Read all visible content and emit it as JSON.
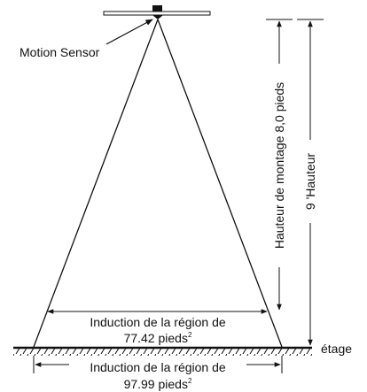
{
  "sensor_label": "Motion Sensor",
  "mount_height": "Hauteur de montage 8,0 pieds",
  "total_height": "9 'Hauteur",
  "floor": "étage",
  "inner_area": {
    "line1": "Induction de la région de",
    "line2": "77.42 pieds",
    "unit_sup": "2"
  },
  "outer_area": {
    "line1": "Induction de la région de",
    "line2": "97.99 pieds",
    "unit_sup": "2"
  }
}
